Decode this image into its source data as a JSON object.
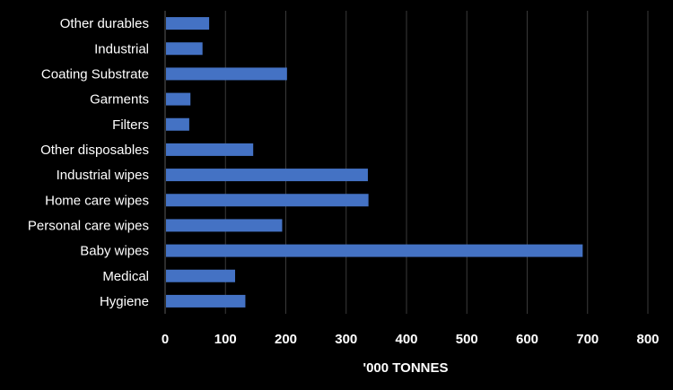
{
  "chart_data": {
    "type": "bar",
    "orientation": "horizontal",
    "title": "",
    "xlabel": "'000 TONNES",
    "ylabel": "",
    "xlim": [
      0,
      800
    ],
    "x_ticks": [
      0,
      100,
      200,
      300,
      400,
      500,
      600,
      700,
      800
    ],
    "grid": "vertical",
    "legend": "none",
    "categories": [
      "Other durables",
      "Industrial",
      "Coating Substrate",
      "Garments",
      "Filters",
      "Other disposables",
      "Industrial wipes",
      "Home care wipes",
      "Personal care wipes",
      "Baby wipes",
      "Medical",
      "Hygiene"
    ],
    "values": [
      73,
      62,
      202,
      42,
      40,
      146,
      336,
      337,
      194,
      692,
      116,
      133
    ],
    "colors": {
      "background": "#000000",
      "bar_fill": "#4472c4",
      "gridline": "#3a3a3a",
      "text": "#ffffff"
    }
  }
}
